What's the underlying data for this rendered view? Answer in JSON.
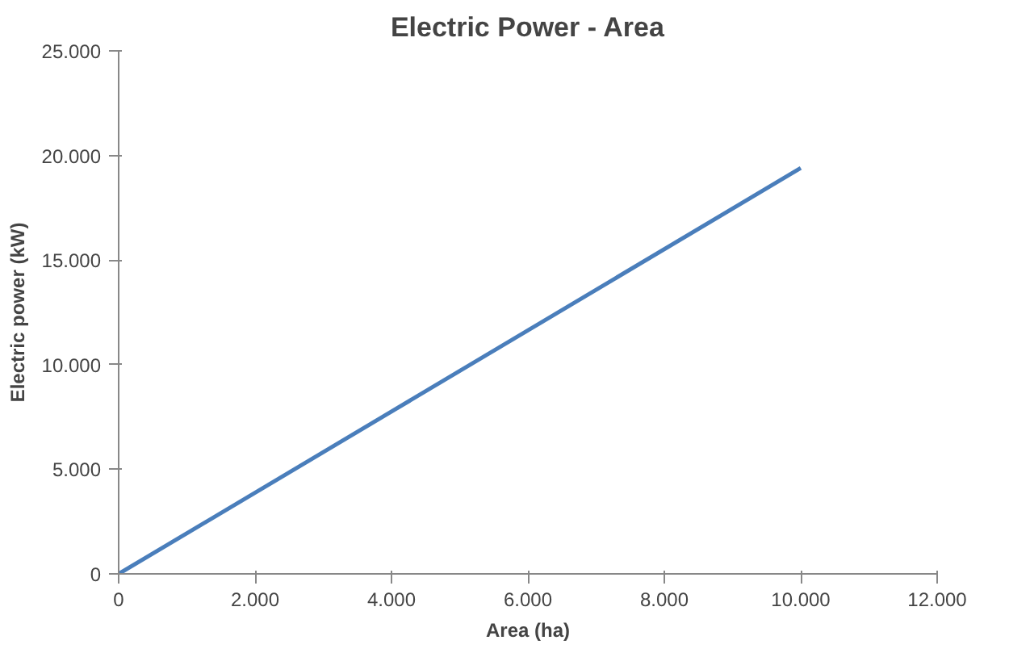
{
  "chart_data": {
    "type": "line",
    "title": "Electric Power - Area",
    "xlabel": "Area (ha)",
    "ylabel": "Electric power (kW)",
    "x": [
      0,
      10000
    ],
    "series": [
      {
        "color": "#4a7ebb",
        "values": [
          0,
          19400
        ]
      }
    ],
    "xlim": [
      0,
      12000
    ],
    "xticks": [
      0,
      {
        "value": 2000,
        "label": "2.000"
      },
      {
        "value": 4000,
        "label": "4.000"
      },
      {
        "value": 6000,
        "label": "6.000"
      },
      {
        "value": 8000,
        "label": "8.000"
      },
      {
        "value": 10000,
        "label": "10.000"
      },
      {
        "value": 12000,
        "label": "12.000"
      }
    ],
    "ylim": [
      0,
      25000
    ],
    "yticks": [
      0,
      {
        "value": 5000,
        "label": "5.000"
      },
      {
        "value": 10000,
        "label": "10.000"
      },
      {
        "value": 15000,
        "label": "15.000"
      },
      {
        "value": 20000,
        "label": "20.000"
      },
      {
        "value": 25000,
        "label": "25.000"
      }
    ],
    "grid": false,
    "marker": "none",
    "line_style": "solid"
  }
}
